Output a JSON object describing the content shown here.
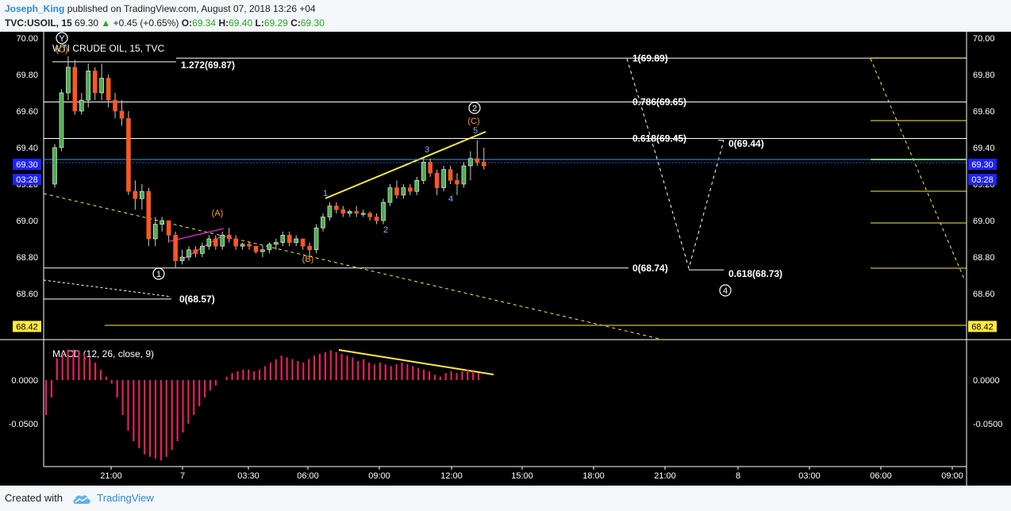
{
  "header": {
    "author": "Joseph_King",
    "published": "published on TradingView.com, August 07, 2018 13:26 +04",
    "symbol": "TVC:USOIL, 15",
    "last": "69.30",
    "change": "+0.45 (+0.65%)",
    "o_label": "O:",
    "o_value": "69.34",
    "h_label": "H:",
    "h_value": "69.40",
    "l_label": "L:",
    "l_value": "69.29",
    "c_label": "C:",
    "c_value": "69.30"
  },
  "footer": {
    "created": "Created with",
    "brand": "TradingView"
  },
  "colors": {
    "background": "#000000",
    "candle_up": "#4caf50",
    "candle_down": "#ff5722",
    "macd_hist": "#e91e63",
    "fib_line": "#ffffff",
    "trend_line": "#ffeb3b",
    "wedge_line": "#d020d0",
    "price_badge": "#1e22ff",
    "support_badge": "#ffeb3b",
    "wave_count_blue": "#7fb2ff",
    "wave_count_orange": "#ff9a2e"
  },
  "chart_data": {
    "type": "candlestick",
    "title": "WTI CRUDE OIL, 15, TVC",
    "y_ticks": [
      "70.00",
      "69.80",
      "69.60",
      "69.40",
      "69.20",
      "69.00",
      "68.80",
      "68.60"
    ],
    "ylim": [
      68.38,
      70.02
    ],
    "x_ticks": [
      "21:00",
      "7",
      "03:30",
      "06:00",
      "09:00",
      "12:00",
      "15:00",
      "18:00",
      "21:00",
      "8",
      "03:00",
      "06:00",
      "09:00"
    ],
    "badges": [
      {
        "text": "69.30",
        "value": 69.3,
        "kind": "price"
      },
      {
        "text": "03:28",
        "value": 69.26,
        "kind": "timer"
      },
      {
        "text": "68.42",
        "value": 68.42,
        "kind": "support"
      }
    ],
    "fib_levels": [
      {
        "label": "1.272(69.87)",
        "value": 69.87
      },
      {
        "label": "1(69.89)",
        "value": 69.89
      },
      {
        "label": "0.786(69.65)",
        "value": 69.65
      },
      {
        "label": "0.618(69.45)",
        "value": 69.45
      },
      {
        "label": "0(69.44)",
        "value": 69.44
      },
      {
        "label": "0(68.74)",
        "value": 68.74
      },
      {
        "label": "0.618(68.73)",
        "value": 68.73
      },
      {
        "label": "0(68.57)",
        "value": 68.57
      }
    ],
    "wave_labels": [
      {
        "text": "Y",
        "circled": true
      },
      {
        "text": "(C)",
        "circled": false
      },
      {
        "text": "1",
        "circled": true
      },
      {
        "text": "2",
        "circled": true
      },
      {
        "text": "4",
        "circled": true
      },
      {
        "text": "(A)",
        "circled": false
      },
      {
        "text": "(B)",
        "circled": false
      },
      {
        "text": "(C)",
        "circled": false
      },
      {
        "text": "1",
        "circled": false
      },
      {
        "text": "2",
        "circled": false
      },
      {
        "text": "3",
        "circled": false
      },
      {
        "text": "4",
        "circled": false
      },
      {
        "text": "5",
        "circled": false
      }
    ],
    "candles": [
      {
        "o": 69.2,
        "h": 69.42,
        "l": 69.18,
        "c": 69.4
      },
      {
        "o": 69.4,
        "h": 69.72,
        "l": 69.38,
        "c": 69.7
      },
      {
        "o": 69.7,
        "h": 69.9,
        "l": 69.66,
        "c": 69.84
      },
      {
        "o": 69.84,
        "h": 69.88,
        "l": 69.58,
        "c": 69.6
      },
      {
        "o": 69.6,
        "h": 69.7,
        "l": 69.58,
        "c": 69.66
      },
      {
        "o": 69.66,
        "h": 69.86,
        "l": 69.62,
        "c": 69.82
      },
      {
        "o": 69.82,
        "h": 69.84,
        "l": 69.66,
        "c": 69.7
      },
      {
        "o": 69.7,
        "h": 69.86,
        "l": 69.66,
        "c": 69.78
      },
      {
        "o": 69.78,
        "h": 69.8,
        "l": 69.62,
        "c": 69.66
      },
      {
        "o": 69.66,
        "h": 69.7,
        "l": 69.56,
        "c": 69.6
      },
      {
        "o": 69.6,
        "h": 69.66,
        "l": 69.52,
        "c": 69.56
      },
      {
        "o": 69.56,
        "h": 69.6,
        "l": 69.14,
        "c": 69.16
      },
      {
        "o": 69.16,
        "h": 69.22,
        "l": 69.06,
        "c": 69.12
      },
      {
        "o": 69.12,
        "h": 69.2,
        "l": 69.06,
        "c": 69.16
      },
      {
        "o": 69.16,
        "h": 69.18,
        "l": 68.86,
        "c": 68.9
      },
      {
        "o": 68.9,
        "h": 69.02,
        "l": 68.86,
        "c": 68.98
      },
      {
        "o": 68.98,
        "h": 69.02,
        "l": 68.94,
        "c": 69.0
      },
      {
        "o": 69.0,
        "h": 69.0,
        "l": 68.88,
        "c": 68.92
      },
      {
        "o": 68.92,
        "h": 68.94,
        "l": 68.74,
        "c": 68.78
      },
      {
        "o": 68.78,
        "h": 68.84,
        "l": 68.76,
        "c": 68.8
      },
      {
        "o": 68.8,
        "h": 68.86,
        "l": 68.78,
        "c": 68.84
      },
      {
        "o": 68.84,
        "h": 68.86,
        "l": 68.8,
        "c": 68.82
      },
      {
        "o": 68.82,
        "h": 68.88,
        "l": 68.8,
        "c": 68.86
      },
      {
        "o": 68.86,
        "h": 68.92,
        "l": 68.84,
        "c": 68.9
      },
      {
        "o": 68.9,
        "h": 68.92,
        "l": 68.84,
        "c": 68.86
      },
      {
        "o": 68.86,
        "h": 68.94,
        "l": 68.84,
        "c": 68.92
      },
      {
        "o": 68.92,
        "h": 68.96,
        "l": 68.88,
        "c": 68.9
      },
      {
        "o": 68.9,
        "h": 68.92,
        "l": 68.84,
        "c": 68.86
      },
      {
        "o": 68.86,
        "h": 68.88,
        "l": 68.84,
        "c": 68.87
      },
      {
        "o": 68.87,
        "h": 68.88,
        "l": 68.84,
        "c": 68.86
      },
      {
        "o": 68.86,
        "h": 68.86,
        "l": 68.82,
        "c": 68.83
      },
      {
        "o": 68.83,
        "h": 68.86,
        "l": 68.8,
        "c": 68.84
      },
      {
        "o": 68.84,
        "h": 68.88,
        "l": 68.82,
        "c": 68.87
      },
      {
        "o": 68.87,
        "h": 68.9,
        "l": 68.84,
        "c": 68.88
      },
      {
        "o": 68.88,
        "h": 68.94,
        "l": 68.86,
        "c": 68.92
      },
      {
        "o": 68.92,
        "h": 68.94,
        "l": 68.86,
        "c": 68.88
      },
      {
        "o": 68.88,
        "h": 68.92,
        "l": 68.86,
        "c": 68.9
      },
      {
        "o": 68.9,
        "h": 68.9,
        "l": 68.84,
        "c": 68.86
      },
      {
        "o": 68.86,
        "h": 68.88,
        "l": 68.8,
        "c": 68.84
      },
      {
        "o": 68.84,
        "h": 68.98,
        "l": 68.82,
        "c": 68.96
      },
      {
        "o": 68.96,
        "h": 69.04,
        "l": 68.94,
        "c": 69.02
      },
      {
        "o": 69.02,
        "h": 69.1,
        "l": 69.0,
        "c": 69.08
      },
      {
        "o": 69.08,
        "h": 69.1,
        "l": 69.04,
        "c": 69.06
      },
      {
        "o": 69.06,
        "h": 69.08,
        "l": 69.02,
        "c": 69.04
      },
      {
        "o": 69.04,
        "h": 69.06,
        "l": 69.02,
        "c": 69.05
      },
      {
        "o": 69.05,
        "h": 69.08,
        "l": 69.02,
        "c": 69.04
      },
      {
        "o": 69.04,
        "h": 69.06,
        "l": 69.02,
        "c": 69.04
      },
      {
        "o": 69.04,
        "h": 69.05,
        "l": 69.0,
        "c": 69.02
      },
      {
        "o": 69.02,
        "h": 69.04,
        "l": 68.98,
        "c": 69.0
      },
      {
        "o": 69.0,
        "h": 69.12,
        "l": 68.98,
        "c": 69.1
      },
      {
        "o": 69.1,
        "h": 69.2,
        "l": 69.08,
        "c": 69.18
      },
      {
        "o": 69.18,
        "h": 69.22,
        "l": 69.12,
        "c": 69.14
      },
      {
        "o": 69.14,
        "h": 69.2,
        "l": 69.12,
        "c": 69.18
      },
      {
        "o": 69.18,
        "h": 69.2,
        "l": 69.14,
        "c": 69.16
      },
      {
        "o": 69.16,
        "h": 69.24,
        "l": 69.14,
        "c": 69.22
      },
      {
        "o": 69.22,
        "h": 69.34,
        "l": 69.2,
        "c": 69.32
      },
      {
        "o": 69.32,
        "h": 69.34,
        "l": 69.24,
        "c": 69.26
      },
      {
        "o": 69.26,
        "h": 69.28,
        "l": 69.14,
        "c": 69.18
      },
      {
        "o": 69.18,
        "h": 69.3,
        "l": 69.16,
        "c": 69.28
      },
      {
        "o": 69.28,
        "h": 69.3,
        "l": 69.2,
        "c": 69.22
      },
      {
        "o": 69.22,
        "h": 69.26,
        "l": 69.14,
        "c": 69.2
      },
      {
        "o": 69.2,
        "h": 69.32,
        "l": 69.18,
        "c": 69.3
      },
      {
        "o": 69.3,
        "h": 69.38,
        "l": 69.22,
        "c": 69.34
      },
      {
        "o": 69.34,
        "h": 69.44,
        "l": 69.3,
        "c": 69.32
      },
      {
        "o": 69.32,
        "h": 69.4,
        "l": 69.28,
        "c": 69.3
      }
    ],
    "x_start": 69.0,
    "macd_label": "MACD (12, 26, close, 9)",
    "macd_ticks": [
      {
        "text": "0.0000",
        "value": 0.0
      },
      {
        "text": "-0.0500",
        "value": -0.05
      }
    ],
    "macd_ylim": [
      -0.095,
      0.04
    ],
    "macd_hist": [
      -0.04,
      -0.02,
      0.025,
      0.03,
      0.035,
      0.035,
      0.034,
      0.03,
      0.026,
      0.02,
      0.012,
      0.004,
      -0.004,
      -0.02,
      -0.04,
      -0.058,
      -0.07,
      -0.078,
      -0.085,
      -0.088,
      -0.09,
      -0.092,
      -0.088,
      -0.08,
      -0.07,
      -0.06,
      -0.05,
      -0.04,
      -0.03,
      -0.02,
      -0.012,
      -0.006,
      0.0,
      0.004,
      0.008,
      0.01,
      0.012,
      0.012,
      0.01,
      0.012,
      0.016,
      0.02,
      0.024,
      0.028,
      0.026,
      0.024,
      0.022,
      0.02,
      0.024,
      0.028,
      0.03,
      0.032,
      0.034,
      0.032,
      0.03,
      0.028,
      0.026,
      0.022,
      0.024,
      0.02,
      0.018,
      0.02,
      0.018,
      0.016,
      0.018,
      0.02,
      0.018,
      0.016,
      0.014,
      0.012,
      0.01,
      0.006,
      0.004,
      0.008,
      0.01,
      0.008,
      0.01,
      0.012,
      0.01,
      0.008
    ]
  }
}
